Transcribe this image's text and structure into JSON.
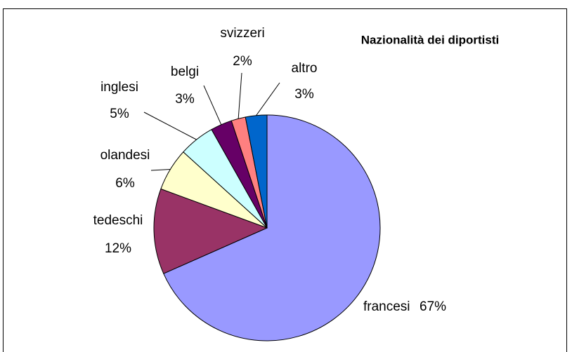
{
  "chart_data": {
    "type": "pie",
    "title": "Nazionalità dei diportisti",
    "categories": [
      "francesi",
      "tedeschi",
      "olandesi",
      "inglesi",
      "belgi",
      "svizzeri",
      "altro"
    ],
    "values": [
      67,
      12,
      6,
      5,
      3,
      2,
      3
    ],
    "value_labels": [
      "67%",
      "12%",
      "6%",
      "5%",
      "3%",
      "2%",
      "3%"
    ],
    "colors": [
      "#9999ff",
      "#993366",
      "#ffffcc",
      "#ccffff",
      "#660066",
      "#ff8080",
      "#0066cc"
    ]
  }
}
